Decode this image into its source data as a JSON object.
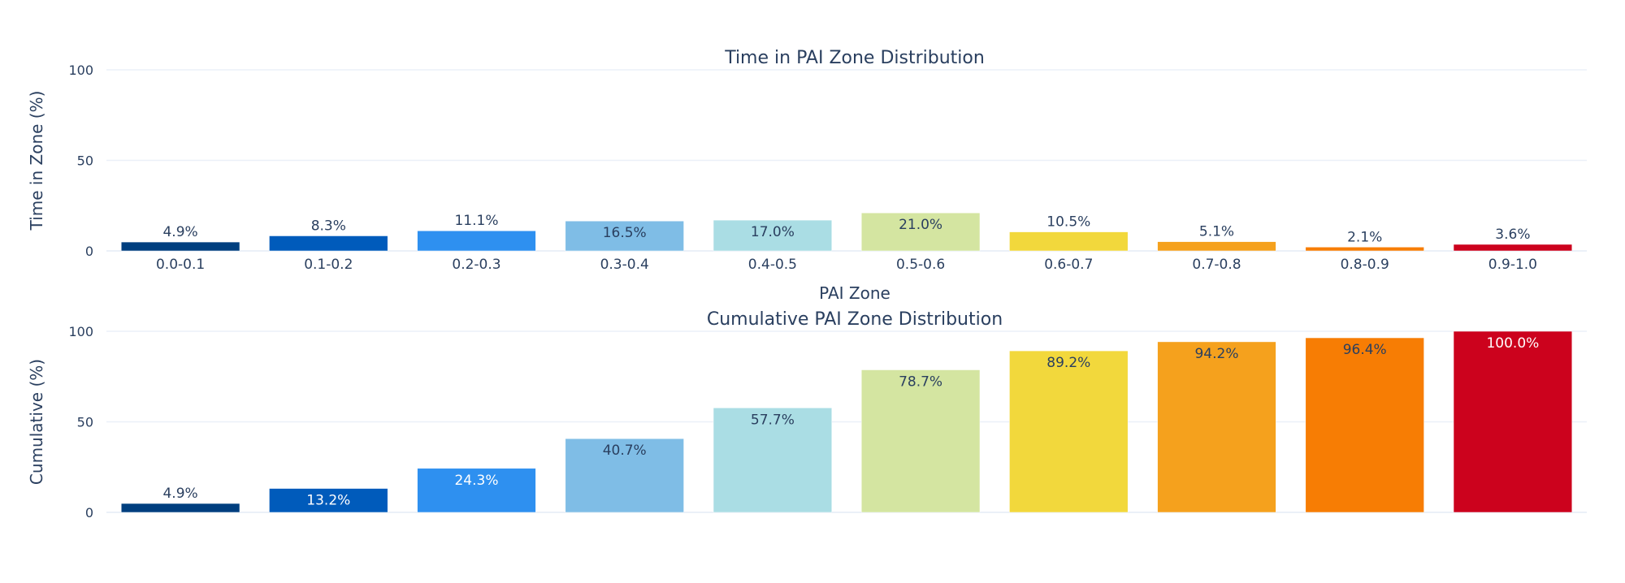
{
  "chart_data": [
    {
      "type": "bar",
      "title": "Time in PAI Zone Distribution",
      "xlabel": "PAI Zone",
      "ylabel": "Time in Zone (%)",
      "ylim": [
        0,
        100
      ],
      "yticks": [
        "0",
        "50",
        "100"
      ],
      "grid": true,
      "categories": [
        "0.0-0.1",
        "0.1-0.2",
        "0.2-0.3",
        "0.3-0.4",
        "0.4-0.5",
        "0.5-0.6",
        "0.6-0.7",
        "0.7-0.8",
        "0.8-0.9",
        "0.9-1.0"
      ],
      "values": [
        4.9,
        8.3,
        11.1,
        16.5,
        17.0,
        21.0,
        10.5,
        5.1,
        2.1,
        3.6
      ],
      "labels": [
        "4.9%",
        "8.3%",
        "11.1%",
        "16.5%",
        "17.0%",
        "21.0%",
        "10.5%",
        "5.1%",
        "2.1%",
        "3.6%"
      ]
    },
    {
      "type": "bar",
      "title": "Cumulative PAI Zone Distribution",
      "xlabel": "",
      "ylabel": "Cumulative (%)",
      "ylim": [
        0,
        100
      ],
      "yticks": [
        "0",
        "50",
        "100"
      ],
      "grid": true,
      "categories": [
        "0.0-0.1",
        "0.1-0.2",
        "0.2-0.3",
        "0.3-0.4",
        "0.4-0.5",
        "0.5-0.6",
        "0.6-0.7",
        "0.7-0.8",
        "0.8-0.9",
        "0.9-1.0"
      ],
      "values": [
        4.9,
        13.2,
        24.3,
        40.7,
        57.7,
        78.7,
        89.2,
        94.2,
        96.4,
        100.0
      ],
      "labels": [
        "4.9%",
        "13.2%",
        "24.3%",
        "40.7%",
        "57.7%",
        "78.7%",
        "89.2%",
        "94.2%",
        "96.4%",
        "100.0%"
      ]
    }
  ],
  "colors": [
    "#003f7f",
    "#005bbb",
    "#2e90f0",
    "#7fbde6",
    "#aadde4",
    "#d4e5a1",
    "#f2d83c",
    "#f5a11d",
    "#f77d04",
    "#cc021d"
  ],
  "text_color": "#2a3f5f",
  "grid_color": "#ebf0f8"
}
